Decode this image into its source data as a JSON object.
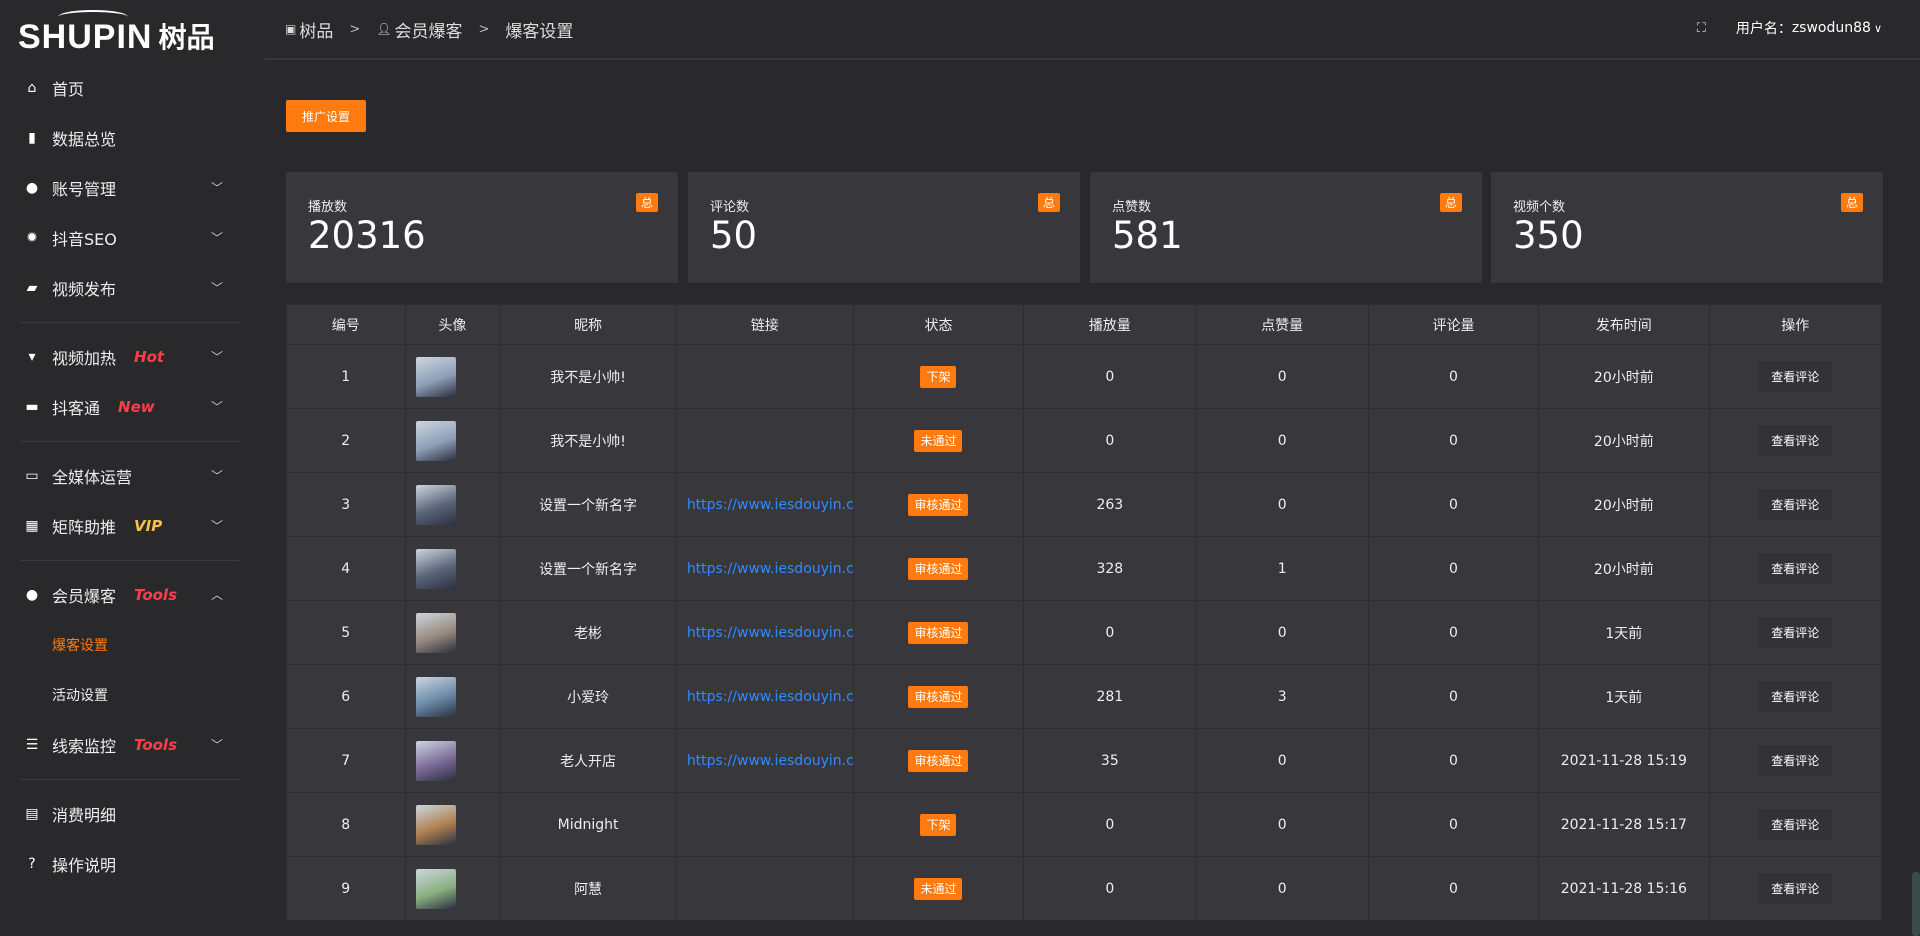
{
  "logo": {
    "en": "SHUPIN",
    "cn": "树品"
  },
  "sidebar": {
    "items": [
      {
        "label": "首页",
        "icon": "home-icon"
      },
      {
        "label": "数据总览",
        "icon": "bar-chart-icon"
      },
      {
        "label": "账号管理",
        "icon": "user-icon",
        "chevron": "down"
      },
      {
        "label": "抖音SEO",
        "icon": "gear-icon",
        "chevron": "down"
      },
      {
        "label": "视频发布",
        "icon": "camera-icon",
        "chevron": "down"
      },
      {
        "label": "视频加热",
        "icon": "sign-icon",
        "tag": "Hot",
        "chevron": "down"
      },
      {
        "label": "抖客通",
        "icon": "chat-icon",
        "tag": "New",
        "chevron": "down"
      },
      {
        "label": "全媒体运营",
        "icon": "monitor-icon",
        "chevron": "down"
      },
      {
        "label": "矩阵助推",
        "icon": "grid-icon",
        "tag": "VIP",
        "chevron": "down"
      },
      {
        "label": "会员爆客",
        "icon": "user-icon",
        "tag": "Tools",
        "chevron": "up"
      },
      {
        "label": "爆客设置",
        "active": true
      },
      {
        "label": "活动设置"
      },
      {
        "label": "线索监控",
        "icon": "sliders-icon",
        "tag": "Tools",
        "chevron": "down"
      },
      {
        "label": "消费明细",
        "icon": "wallet-icon"
      },
      {
        "label": "操作说明",
        "icon": "help-icon"
      }
    ]
  },
  "header": {
    "breadcrumb": [
      "树品",
      "会员爆客",
      "爆客设置"
    ],
    "user_label": "用户名：",
    "username": "zswodun88"
  },
  "toolbar": {
    "promo_label": "推广设置"
  },
  "stats": [
    {
      "label": "播放数",
      "value": "20316",
      "badge": "总"
    },
    {
      "label": "评论数",
      "value": "50",
      "badge": "总"
    },
    {
      "label": "点赞数",
      "value": "581",
      "badge": "总"
    },
    {
      "label": "视频个数",
      "value": "350",
      "badge": "总"
    }
  ],
  "table": {
    "headers": [
      "编号",
      "头像",
      "昵称",
      "链接",
      "状态",
      "播放量",
      "点赞量",
      "评论量",
      "发布时间",
      "操作"
    ],
    "rows": [
      {
        "id": "1",
        "name": "我不是小帅!",
        "link": "",
        "status": "下架",
        "plays": "0",
        "likes": "0",
        "comments": "0",
        "time": "20小时前",
        "action": "查看评论",
        "avatar": "#8fa0b8"
      },
      {
        "id": "2",
        "name": "我不是小帅!",
        "link": "",
        "status": "未通过",
        "plays": "0",
        "likes": "0",
        "comments": "0",
        "time": "20小时前",
        "action": "查看评论",
        "avatar": "#8fa0b8"
      },
      {
        "id": "3",
        "name": "设置一个新名字",
        "link": "https://www.iesdouyin.c",
        "status": "审核通过",
        "plays": "263",
        "likes": "0",
        "comments": "0",
        "time": "20小时前",
        "action": "查看评论",
        "avatar": "#5a6478"
      },
      {
        "id": "4",
        "name": "设置一个新名字",
        "link": "https://www.iesdouyin.c",
        "status": "审核通过",
        "plays": "328",
        "likes": "1",
        "comments": "0",
        "time": "20小时前",
        "action": "查看评论",
        "avatar": "#5a6478"
      },
      {
        "id": "5",
        "name": "老彬",
        "link": "https://www.iesdouyin.c",
        "status": "审核通过",
        "plays": "0",
        "likes": "0",
        "comments": "0",
        "time": "1天前",
        "action": "查看评论",
        "avatar": "#9a8a80"
      },
      {
        "id": "6",
        "name": "小爱玲",
        "link": "https://www.iesdouyin.c",
        "status": "审核通过",
        "plays": "281",
        "likes": "3",
        "comments": "0",
        "time": "1天前",
        "action": "查看评论",
        "avatar": "#6a8aa8"
      },
      {
        "id": "7",
        "name": "老人开店",
        "link": "https://www.iesdouyin.c",
        "status": "审核通过",
        "plays": "35",
        "likes": "0",
        "comments": "0",
        "time": "2021-11-28 15:19",
        "action": "查看评论",
        "avatar": "#7a6a98"
      },
      {
        "id": "8",
        "name": "Midnight",
        "link": "",
        "status": "下架",
        "plays": "0",
        "likes": "0",
        "comments": "0",
        "time": "2021-11-28 15:17",
        "action": "查看评论",
        "avatar": "#b08050"
      },
      {
        "id": "9",
        "name": "阿慧",
        "link": "",
        "status": "未通过",
        "plays": "0",
        "likes": "0",
        "comments": "0",
        "time": "2021-11-28 15:16",
        "action": "查看评论",
        "avatar": "#8ab080"
      }
    ]
  },
  "colors": {
    "accent": "#ff7a0f",
    "link": "#2f8cff",
    "tag_red": "#ff3d4a",
    "tag_vip": "#f5c04a"
  }
}
